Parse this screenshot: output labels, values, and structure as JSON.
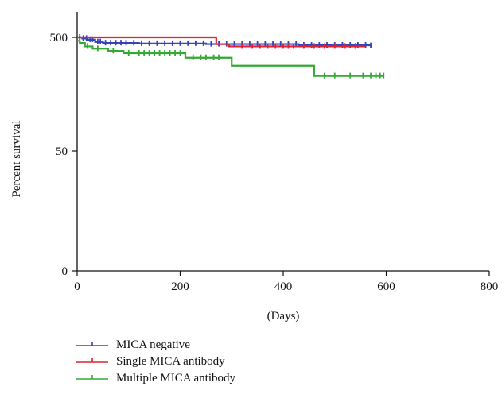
{
  "chart_data": {
    "type": "line",
    "xlabel": "(Days)",
    "ylabel": "Percent survival",
    "xlim": [
      0,
      800
    ],
    "x_ticks": [
      "0",
      "200",
      "400",
      "600",
      "800"
    ],
    "y_ticks": [
      {
        "label": "0",
        "pos": 0
      },
      {
        "label": "50",
        "pos": 1
      },
      {
        "label": "500",
        "pos": 2
      }
    ],
    "y_scale": "ordinal (tick labels as printed: 0, 50, 500)",
    "grid": false,
    "legend_position": "bottom-left",
    "series": [
      {
        "name": "MICA negative",
        "color": "#3344bb",
        "steps": [
          [
            0,
            2.0
          ],
          [
            10,
            1.99
          ],
          [
            20,
            1.98
          ],
          [
            35,
            1.96
          ],
          [
            50,
            1.95
          ],
          [
            120,
            1.945
          ],
          [
            250,
            1.94
          ],
          [
            430,
            1.93
          ],
          [
            570,
            1.925
          ]
        ],
        "censor_x": [
          5,
          12,
          18,
          25,
          30,
          40,
          45,
          55,
          65,
          75,
          85,
          95,
          110,
          125,
          140,
          155,
          170,
          185,
          200,
          215,
          230,
          245,
          260,
          275,
          290,
          305,
          320,
          335,
          350,
          365,
          380,
          395,
          410,
          425,
          440,
          455,
          470,
          485,
          500,
          515,
          530,
          545,
          560,
          570
        ]
      },
      {
        "name": "Single MICA antibody",
        "color": "#dd2233",
        "steps": [
          [
            0,
            2.0
          ],
          [
            270,
            1.94
          ],
          [
            295,
            1.92
          ],
          [
            560,
            1.92
          ]
        ],
        "censor_x": [
          320,
          340,
          355,
          370,
          385,
          400,
          410,
          420,
          440,
          460,
          480,
          500,
          520,
          540
        ]
      },
      {
        "name": "Multiple MICA antibody",
        "color": "#33aa33",
        "steps": [
          [
            0,
            1.97
          ],
          [
            5,
            1.95
          ],
          [
            15,
            1.92
          ],
          [
            30,
            1.9
          ],
          [
            60,
            1.88
          ],
          [
            90,
            1.86
          ],
          [
            210,
            1.82
          ],
          [
            300,
            1.75
          ],
          [
            460,
            1.66
          ],
          [
            595,
            1.66
          ]
        ],
        "censor_x": [
          20,
          40,
          70,
          100,
          120,
          130,
          140,
          150,
          160,
          170,
          180,
          190,
          200,
          225,
          240,
          250,
          265,
          275,
          480,
          500,
          530,
          555,
          570,
          580,
          588,
          595
        ]
      }
    ]
  }
}
